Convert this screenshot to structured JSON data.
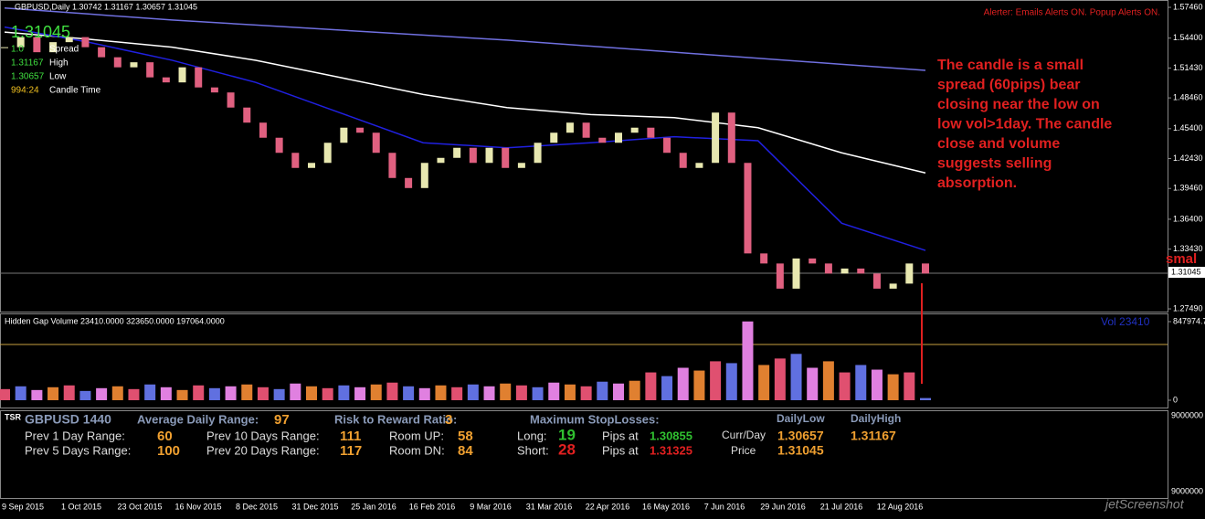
{
  "header": {
    "symbol": "GBPUSD,Daily  1.30742 1.31167 1.30657 1.31045",
    "alert": "Alerter:  Emails Alerts ON.  Popup Alerts ON."
  },
  "info": {
    "bid": "1.31045",
    "spread_value": "1.0",
    "spread_label": "Spread",
    "high_value": "1.31167",
    "high_label": "High",
    "low_value": "1.30657",
    "low_label": "Low",
    "time_value": "994:24",
    "time_label": "Candle Time"
  },
  "annotation": [
    "The candle is a small",
    "spread (60pips) bear",
    "closing near the low on",
    "low vol>1day. The candle",
    "close and volume",
    "suggests selling",
    "absorption."
  ],
  "edge_text": "smal",
  "price_tag": "1.31045",
  "chart_data": {
    "type": "candlestick",
    "up_color": "#e8e8b0",
    "down_color": "#e06080",
    "values": [
      1.535,
      1.545,
      1.53,
      1.54,
      1.545,
      1.535,
      1.525,
      1.515,
      1.52,
      1.505,
      1.5,
      1.515,
      1.495,
      1.49,
      1.475,
      1.46,
      1.445,
      1.43,
      1.415,
      1.42,
      1.44,
      1.455,
      1.45,
      1.43,
      1.405,
      1.395,
      1.42,
      1.425,
      1.435,
      1.42,
      1.435,
      1.415,
      1.42,
      1.44,
      1.45,
      1.46,
      1.445,
      1.44,
      1.45,
      1.455,
      1.445,
      1.43,
      1.415,
      1.42,
      1.47,
      1.42,
      1.33,
      1.32,
      1.295,
      1.325,
      1.32,
      1.31,
      1.315,
      1.31,
      1.295,
      1.3,
      1.32,
      1.31
    ],
    "series": [
      {
        "color": "#7070e0",
        "values": [
          1.574,
          1.568,
          1.562,
          1.557,
          1.552,
          1.547,
          1.542,
          1.536,
          1.53,
          1.524,
          1.518,
          1.512
        ]
      },
      {
        "color": "#ffffff",
        "values": [
          1.55,
          1.543,
          1.535,
          1.522,
          1.505,
          1.488,
          1.475,
          1.468,
          1.465,
          1.455,
          1.43,
          1.41
        ]
      },
      {
        "color": "#2020e0",
        "values": [
          1.555,
          1.54,
          1.522,
          1.5,
          1.47,
          1.44,
          1.435,
          1.44,
          1.446,
          1.442,
          1.36,
          1.333
        ]
      }
    ],
    "ylim": [
      1.2722,
      1.5819
    ],
    "yticks": [
      {
        "value": 1.5746,
        "label": "1.57460"
      },
      {
        "value": 1.544,
        "label": "1.54400"
      },
      {
        "value": 1.5143,
        "label": "1.51430"
      },
      {
        "value": 1.4846,
        "label": "1.48460"
      },
      {
        "value": 1.454,
        "label": "1.45400"
      },
      {
        "value": 1.4243,
        "label": "1.42430"
      },
      {
        "value": 1.3946,
        "label": "1.39460"
      },
      {
        "value": 1.364,
        "label": "1.36400"
      },
      {
        "value": 1.3343,
        "label": "1.33430"
      },
      {
        "value": 1.2749,
        "label": "1.27490"
      }
    ],
    "xticks": [
      "9 Sep 2015",
      "1 Oct 2015",
      "23 Oct 2015",
      "16 Nov 2015",
      "8 Dec 2015",
      "31 Dec 2015",
      "25 Jan 2016",
      "16 Feb 2016",
      "9 Mar 2016",
      "31 Mar 2016",
      "22 Apr 2016",
      "16 May 2016",
      "7 Jun 2016",
      "29 Jun 2016",
      "21 Jul 2016",
      "12 Aug 2016"
    ]
  },
  "volume": {
    "title": "Hidden Gap Volume 23410.0000 323650.0000 197064.0000",
    "vol_label": "Vol   23410",
    "palette": [
      "#e05070",
      "#6070e0",
      "#e080e0",
      "#e08030"
    ],
    "values": [
      120000,
      150000,
      110000,
      140000,
      160000,
      100000,
      130000,
      150000,
      120000,
      170000,
      140000,
      110000,
      160000,
      130000,
      150000,
      170000,
      140000,
      120000,
      180000,
      150000,
      130000,
      160000,
      140000,
      170000,
      190000,
      150000,
      130000,
      160000,
      140000,
      170000,
      150000,
      180000,
      160000,
      140000,
      190000,
      170000,
      150000,
      200000,
      180000,
      210000,
      300000,
      260000,
      350000,
      320000,
      420000,
      400000,
      850000,
      380000,
      450000,
      500000,
      350000,
      420000,
      300000,
      380000,
      330000,
      280000,
      300000,
      23410
    ],
    "ylim": [
      -78900,
      936700
    ],
    "yticks": [
      847974.7,
      0
    ]
  },
  "tsr": {
    "tag": "TSR",
    "symbol": "GBPUSD 1440",
    "adr_label": "Average Daily Range:",
    "adr": "97",
    "rr_label": "Risk to Reward Ratio:",
    "rr": "3",
    "sl_label": "Maximum  StopLosses:",
    "dlow_label": "DailyLow",
    "dhigh_label": "DailyHigh",
    "p1_label": "Prev 1 Day Range:",
    "p1": "60",
    "p10_label": "Prev 10 Days Range:",
    "p10": "111",
    "up_label": "Room UP:",
    "up": "58",
    "long_label": "Long:",
    "long": "19",
    "pips1": "Pips at",
    "long_price": "1.30855",
    "cd_label": "Curr/Day",
    "dlow": "1.30657",
    "dhigh": "1.31167",
    "p5_label": "Prev 5 Days Range:",
    "p5": "100",
    "p20_label": "Prev 20 Days Range:",
    "p20": "117",
    "dn_label": "Room DN:",
    "dn": "84",
    "short_label": "Short:",
    "short": "28",
    "pips2": "Pips at",
    "short_price": "1.31325",
    "price_label": "Price",
    "price": "1.31045",
    "axis_top": "9000000",
    "axis_bottom": "9000000"
  },
  "watermark": "jetScreenshot"
}
